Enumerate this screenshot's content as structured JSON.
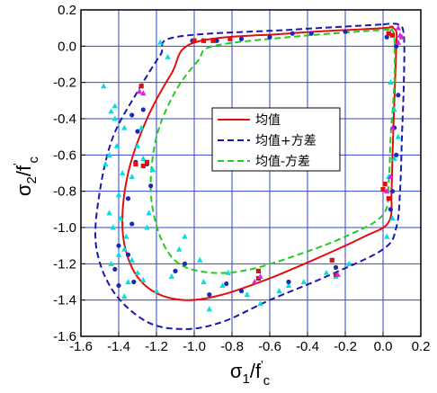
{
  "chart_data": {
    "type": "line",
    "ylabel": {
      "symbol": "σ",
      "sub": "2",
      "slash": "/f",
      "prime": "'",
      "sub2": "c"
    },
    "xlabel": {
      "symbol": "σ",
      "sub": "1",
      "slash": "/f",
      "prime": "'",
      "sub2": "c"
    },
    "xlim": [
      -1.6,
      0.2
    ],
    "ylim": [
      -1.6,
      0.2
    ],
    "xticks": [
      -1.6,
      -1.4,
      -1.2,
      -1.0,
      -0.8,
      -0.6,
      -0.4,
      -0.2,
      0.0,
      0.2
    ],
    "yticks": [
      0.2,
      0.0,
      -0.2,
      -0.4,
      -0.6,
      -0.8,
      -1.0,
      -1.2,
      -1.4,
      -1.6
    ],
    "xtick_labels": [
      "-1.6",
      "-1.4",
      "-1.2",
      "-1.0",
      "-0.8",
      "-0.6",
      "-0.4",
      "-0.2",
      "0.0",
      "0.2"
    ],
    "ytick_labels": [
      "0.2",
      "0.0",
      "-0.2",
      "-0.4",
      "-0.6",
      "-0.8",
      "-1.0",
      "-1.2",
      "-1.4",
      "-1.6"
    ],
    "grid": true,
    "grid_color": "#3344cc",
    "legend_position": "center-right",
    "series": [
      {
        "name": "均值",
        "color": "#e01010",
        "dash": "solid",
        "points": [
          [
            0.04,
            0.11
          ],
          [
            0.07,
            0.08
          ],
          [
            0.07,
            0.0
          ],
          [
            0.06,
            -0.3
          ],
          [
            0.05,
            -0.6
          ],
          [
            0.045,
            -0.8
          ],
          [
            0.03,
            -0.97
          ],
          [
            -0.1,
            -1.05
          ],
          [
            -0.35,
            -1.17
          ],
          [
            -0.6,
            -1.28
          ],
          [
            -0.85,
            -1.37
          ],
          [
            -1.05,
            -1.4
          ],
          [
            -1.22,
            -1.35
          ],
          [
            -1.33,
            -1.22
          ],
          [
            -1.38,
            -1.0
          ],
          [
            -1.35,
            -0.7
          ],
          [
            -1.25,
            -0.4
          ],
          [
            -1.12,
            -0.15
          ],
          [
            -1.0,
            0.02
          ],
          [
            -0.5,
            0.07
          ],
          [
            0.0,
            0.1
          ],
          [
            0.04,
            0.11
          ]
        ]
      },
      {
        "name": "均值+方差",
        "color": "#1a1aaa",
        "dash": "7 4",
        "points": [
          [
            0.0,
            0.12
          ],
          [
            0.08,
            0.12
          ],
          [
            0.11,
            0.06
          ],
          [
            0.11,
            -0.2
          ],
          [
            0.1,
            -0.5
          ],
          [
            0.09,
            -0.8
          ],
          [
            0.07,
            -1.0
          ],
          [
            0.0,
            -1.12
          ],
          [
            -0.3,
            -1.27
          ],
          [
            -0.6,
            -1.4
          ],
          [
            -0.85,
            -1.52
          ],
          [
            -1.05,
            -1.56
          ],
          [
            -1.25,
            -1.52
          ],
          [
            -1.43,
            -1.35
          ],
          [
            -1.52,
            -1.1
          ],
          [
            -1.5,
            -0.8
          ],
          [
            -1.43,
            -0.5
          ],
          [
            -1.3,
            -0.25
          ],
          [
            -1.18,
            -0.05
          ],
          [
            -1.1,
            0.05
          ],
          [
            -0.5,
            0.09
          ],
          [
            0.0,
            0.12
          ]
        ]
      },
      {
        "name": "均值-方差",
        "color": "#22cc22",
        "dash": "7 4",
        "points": [
          [
            0.04,
            0.09
          ],
          [
            0.06,
            0.05
          ],
          [
            0.06,
            -0.2
          ],
          [
            0.04,
            -0.5
          ],
          [
            0.03,
            -0.75
          ],
          [
            0.0,
            -0.93
          ],
          [
            -0.2,
            -1.05
          ],
          [
            -0.45,
            -1.15
          ],
          [
            -0.7,
            -1.23
          ],
          [
            -0.9,
            -1.25
          ],
          [
            -1.08,
            -1.2
          ],
          [
            -1.18,
            -1.05
          ],
          [
            -1.23,
            -0.8
          ],
          [
            -1.2,
            -0.5
          ],
          [
            -1.1,
            -0.25
          ],
          [
            -0.98,
            -0.08
          ],
          [
            -0.9,
            0.0
          ],
          [
            -0.5,
            0.05
          ],
          [
            0.0,
            0.09
          ],
          [
            0.04,
            0.09
          ]
        ]
      }
    ],
    "scatter": [
      {
        "color": "#00e0e0",
        "marker": "triangle",
        "points": [
          [
            -1.48,
            -0.22
          ],
          [
            -1.42,
            -0.33
          ],
          [
            -1.44,
            -0.36
          ],
          [
            -1.37,
            -0.45
          ],
          [
            -1.41,
            -0.55
          ],
          [
            -1.45,
            -0.6
          ],
          [
            -1.47,
            -0.65
          ],
          [
            -1.38,
            -0.7
          ],
          [
            -1.33,
            -0.72
          ],
          [
            -1.4,
            -0.82
          ],
          [
            -1.45,
            -0.92
          ],
          [
            -1.39,
            -0.95
          ],
          [
            -1.43,
            -1.0
          ],
          [
            -1.36,
            -1.05
          ],
          [
            -1.4,
            -1.15
          ],
          [
            -1.44,
            -1.2
          ],
          [
            -1.33,
            -1.18
          ],
          [
            -1.3,
            -1.25
          ],
          [
            -1.27,
            -1.29
          ],
          [
            -1.35,
            -1.3
          ],
          [
            -1.37,
            -1.38
          ],
          [
            -1.24,
            -0.92
          ],
          [
            -1.05,
            -1.05
          ],
          [
            -1.2,
            -1.35
          ],
          [
            -1.12,
            -1.27
          ],
          [
            -0.95,
            -1.3
          ],
          [
            -0.85,
            -1.32
          ],
          [
            -0.92,
            -1.45
          ],
          [
            -0.65,
            -1.42
          ],
          [
            -0.55,
            -1.35
          ],
          [
            -0.42,
            -1.3
          ],
          [
            -0.3,
            -1.25
          ],
          [
            -0.25,
            -1.27
          ],
          [
            -0.18,
            -1.2
          ],
          [
            -1.18,
            0.02
          ],
          [
            -1.14,
            -0.06
          ],
          [
            -1.27,
            -0.62
          ],
          [
            -1.3,
            -0.55
          ],
          [
            -1.22,
            -0.68
          ],
          [
            -1.42,
            -0.4
          ],
          [
            -1.37,
            -1.12
          ],
          [
            -1.28,
            -0.45
          ],
          [
            -1.25,
            -1.0
          ],
          [
            -1.08,
            -1.12
          ],
          [
            -0.97,
            -1.18
          ],
          [
            -0.82,
            -1.25
          ],
          [
            -0.72,
            -1.37
          ],
          [
            -0.5,
            -1.32
          ],
          [
            0.08,
            -0.5
          ],
          [
            0.06,
            -0.62
          ],
          [
            0.03,
            -0.72
          ],
          [
            0.05,
            -0.95
          ],
          [
            0.02,
            -1.05
          ],
          [
            0.06,
            -0.35
          ],
          [
            0.04,
            -0.2
          ]
        ]
      },
      {
        "color": "#1a2ab5",
        "marker": "circle",
        "points": [
          [
            -1.33,
            -0.38
          ],
          [
            -1.3,
            -0.47
          ],
          [
            -1.31,
            -0.64
          ],
          [
            -1.25,
            -0.65
          ],
          [
            -1.23,
            -0.77
          ],
          [
            -1.35,
            -0.84
          ],
          [
            -1.33,
            -0.98
          ],
          [
            -1.4,
            -1.1
          ],
          [
            -1.35,
            -1.15
          ],
          [
            -1.32,
            -1.3
          ],
          [
            -1.4,
            -1.32
          ],
          [
            -1.1,
            -1.24
          ],
          [
            -1.05,
            -1.2
          ],
          [
            -0.92,
            -1.37
          ],
          [
            -0.75,
            -1.35
          ],
          [
            -0.5,
            -1.3
          ],
          [
            -0.25,
            -1.22
          ],
          [
            -1.01,
            0.03
          ],
          [
            -0.88,
            0.03
          ],
          [
            -0.75,
            0.04
          ],
          [
            -0.6,
            0.05
          ],
          [
            -0.48,
            0.07
          ],
          [
            -0.38,
            0.07
          ],
          [
            -0.2,
            0.08
          ],
          [
            0.02,
            0.05
          ],
          [
            0.07,
            0.0
          ],
          [
            0.06,
            -0.45
          ],
          [
            0.07,
            -0.6
          ],
          [
            0.05,
            -0.8
          ],
          [
            0.04,
            -0.9
          ],
          [
            0.08,
            -0.27
          ],
          [
            -1.27,
            -0.35
          ],
          [
            -1.42,
            -1.23
          ],
          [
            -0.83,
            -1.31
          ]
        ]
      },
      {
        "color": "#e01010",
        "marker": "square",
        "points": [
          [
            -1.31,
            -0.65
          ],
          [
            -1.27,
            -0.66
          ],
          [
            -1.25,
            -0.64
          ],
          [
            -0.66,
            -1.28
          ],
          [
            -0.66,
            -1.24
          ],
          [
            -0.27,
            -1.18
          ],
          [
            -0.25,
            -1.26
          ],
          [
            0.01,
            -0.76
          ],
          [
            0.03,
            -0.84
          ],
          [
            0.0,
            -0.79
          ],
          [
            -0.81,
            0.04
          ],
          [
            -0.9,
            0.03
          ],
          [
            -1.0,
            0.03
          ],
          [
            -0.95,
            0.03
          ],
          [
            0.05,
            0.06
          ],
          [
            0.03,
            0.07
          ],
          [
            -1.28,
            -0.22
          ]
        ]
      },
      {
        "color": "#e020e0",
        "marker": "triangle",
        "points": [
          [
            -1.29,
            -0.25
          ],
          [
            -1.27,
            -0.26
          ],
          [
            -0.65,
            -1.27
          ],
          [
            -0.68,
            -1.3
          ],
          [
            -0.24,
            -1.26
          ],
          [
            0.08,
            0.1
          ],
          [
            0.09,
            0.06
          ],
          [
            0.08,
            0.02
          ],
          [
            0.1,
            0.05
          ],
          [
            0.02,
            -0.8
          ],
          [
            0.04,
            -0.72
          ],
          [
            0.05,
            -0.45
          ]
        ]
      }
    ]
  }
}
